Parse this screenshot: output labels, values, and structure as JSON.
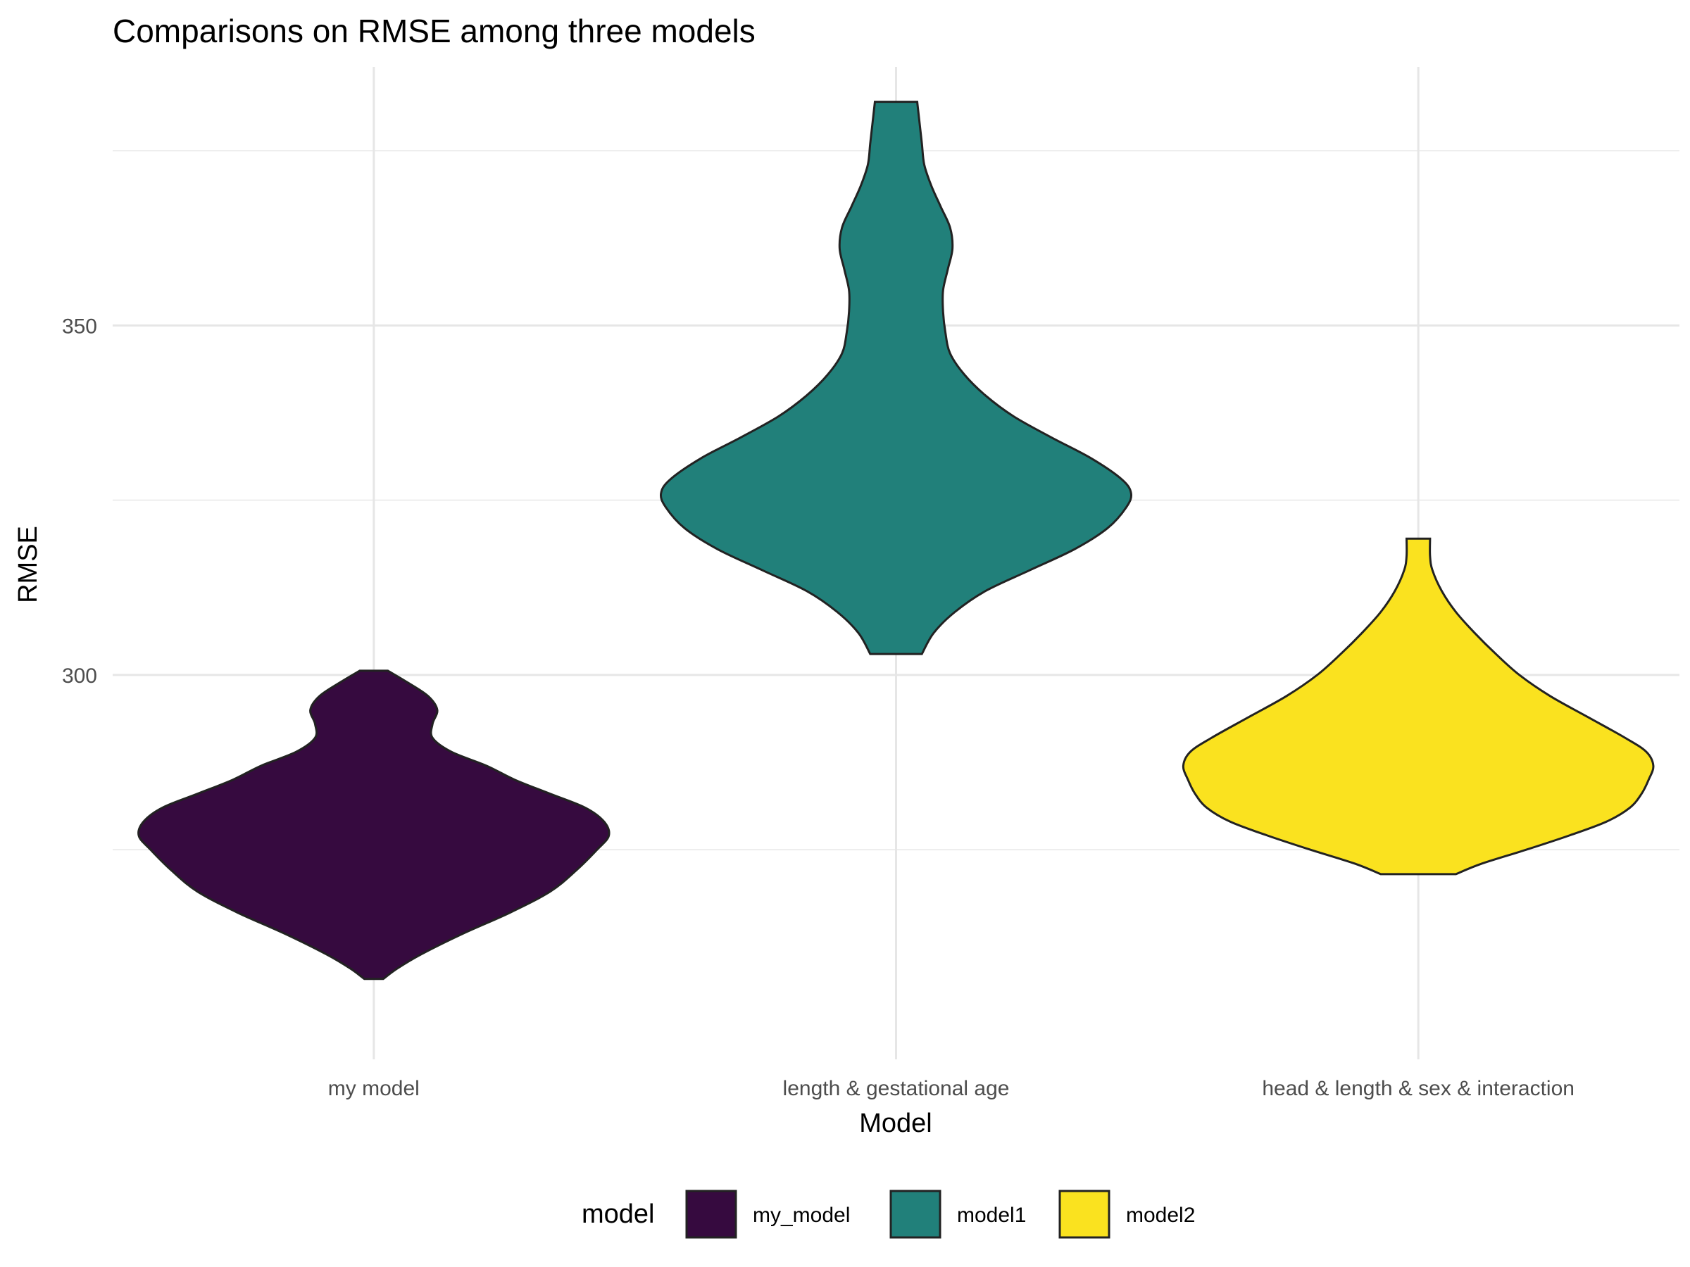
{
  "chart_data": {
    "type": "violin",
    "title": "Comparisons on RMSE among three models",
    "xlabel": "Model",
    "ylabel": "RMSE",
    "ylim": [
      245,
      387
    ],
    "yticks": [
      300,
      350
    ],
    "grid": true,
    "legend": {
      "title": "model",
      "position": "bottom"
    },
    "categories": [
      "my model",
      "length & gestational age",
      "head & length & sex & interaction"
    ],
    "series": [
      {
        "name": "my_model",
        "category": "my model",
        "color": "#360A3F",
        "min": 256.5,
        "max": 300.6,
        "density": [
          [
            256.5,
            0.04
          ],
          [
            258,
            0.1
          ],
          [
            260,
            0.2
          ],
          [
            263,
            0.38
          ],
          [
            266,
            0.58
          ],
          [
            269,
            0.75
          ],
          [
            272,
            0.86
          ],
          [
            275,
            0.95
          ],
          [
            277,
            1.0
          ],
          [
            279,
            0.98
          ],
          [
            281,
            0.9
          ],
          [
            283,
            0.75
          ],
          [
            285,
            0.6
          ],
          [
            287,
            0.48
          ],
          [
            289,
            0.33
          ],
          [
            291,
            0.25
          ],
          [
            293,
            0.25
          ],
          [
            295,
            0.27
          ],
          [
            297,
            0.23
          ],
          [
            299,
            0.14
          ],
          [
            300.6,
            0.06
          ]
        ]
      },
      {
        "name": "model1",
        "category": "length & gestational age",
        "color": "#21807A",
        "min": 303,
        "max": 382,
        "density": [
          [
            303,
            0.11
          ],
          [
            306,
            0.16
          ],
          [
            309,
            0.25
          ],
          [
            312,
            0.38
          ],
          [
            315,
            0.57
          ],
          [
            318,
            0.76
          ],
          [
            321,
            0.9
          ],
          [
            324,
            0.98
          ],
          [
            326,
            1.0
          ],
          [
            328,
            0.96
          ],
          [
            331,
            0.83
          ],
          [
            334,
            0.66
          ],
          [
            337,
            0.5
          ],
          [
            340,
            0.38
          ],
          [
            343,
            0.29
          ],
          [
            346,
            0.23
          ],
          [
            349,
            0.21
          ],
          [
            352,
            0.2
          ],
          [
            355,
            0.2
          ],
          [
            358,
            0.22
          ],
          [
            361,
            0.24
          ],
          [
            364,
            0.23
          ],
          [
            367,
            0.19
          ],
          [
            370,
            0.15
          ],
          [
            373,
            0.12
          ],
          [
            376,
            0.11
          ],
          [
            379,
            0.1
          ],
          [
            382,
            0.09
          ]
        ]
      },
      {
        "name": "model2",
        "category": "head & length & sex & interaction",
        "color": "#FAE21F",
        "min": 271.5,
        "max": 319.5,
        "density": [
          [
            271.5,
            0.16
          ],
          [
            273,
            0.27
          ],
          [
            275,
            0.46
          ],
          [
            277,
            0.64
          ],
          [
            279,
            0.8
          ],
          [
            281,
            0.9
          ],
          [
            283,
            0.95
          ],
          [
            285,
            0.98
          ],
          [
            287,
            1.0
          ],
          [
            289,
            0.97
          ],
          [
            291,
            0.88
          ],
          [
            294,
            0.72
          ],
          [
            297,
            0.56
          ],
          [
            300,
            0.43
          ],
          [
            303,
            0.33
          ],
          [
            306,
            0.24
          ],
          [
            309,
            0.16
          ],
          [
            312,
            0.1
          ],
          [
            315,
            0.06
          ],
          [
            317,
            0.05
          ],
          [
            319.5,
            0.05
          ]
        ]
      }
    ]
  }
}
